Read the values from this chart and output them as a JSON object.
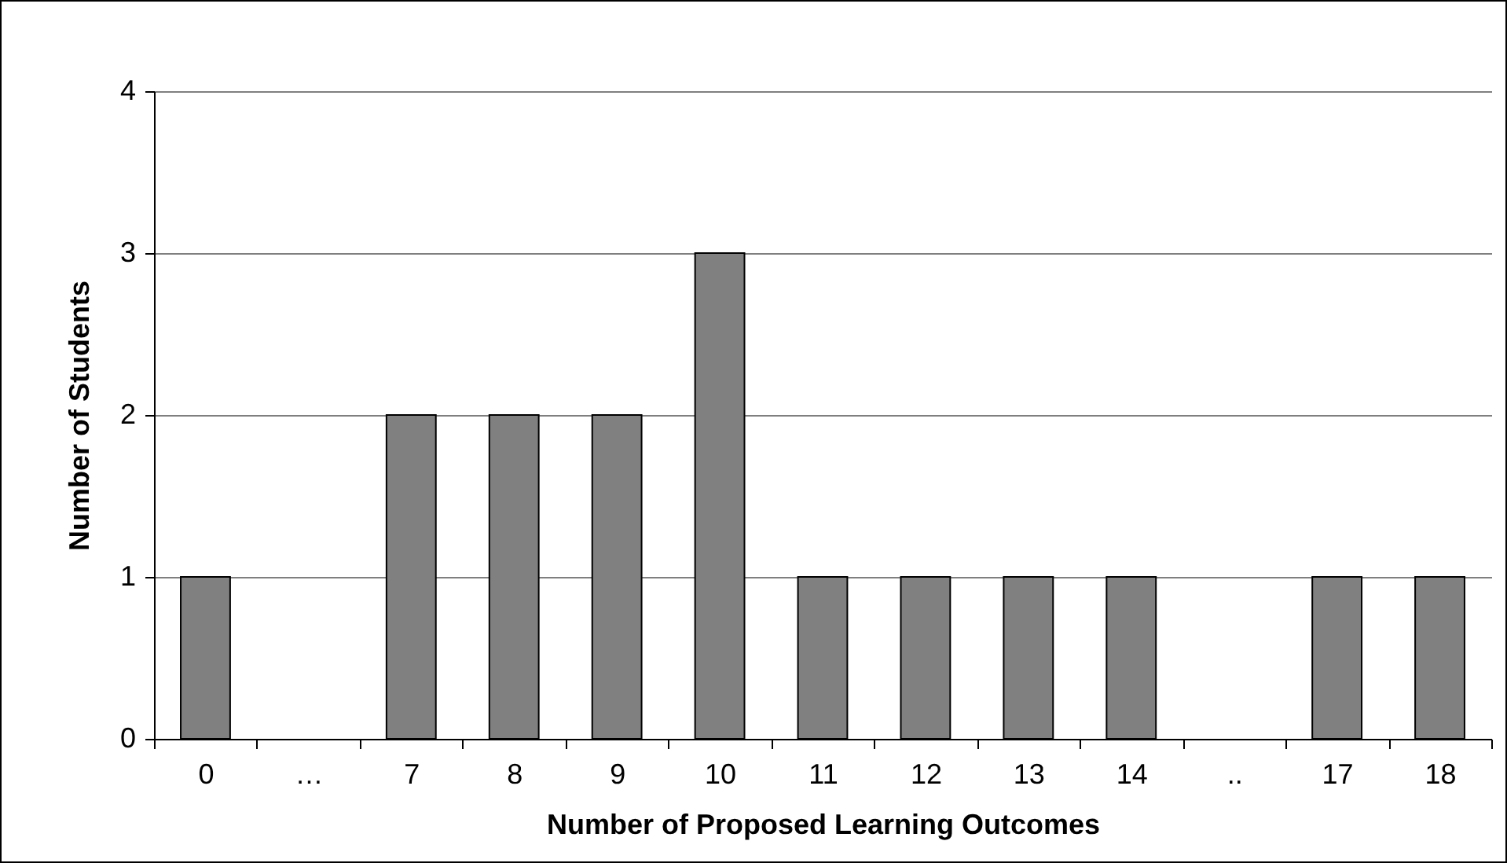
{
  "chart_data": {
    "type": "bar",
    "xlabel": "Number of Proposed Learning Outcomes",
    "ylabel": "Number of Students",
    "categories": [
      "0",
      "…",
      "7",
      "8",
      "9",
      "10",
      "11",
      "12",
      "13",
      "14",
      "..",
      "17",
      "18"
    ],
    "values": [
      1,
      null,
      2,
      2,
      2,
      3,
      1,
      1,
      1,
      1,
      null,
      1,
      1
    ],
    "color": "#808080",
    "ylim": [
      0,
      4
    ],
    "yticks": [
      0,
      1,
      2,
      3,
      4
    ],
    "grid": "y"
  }
}
